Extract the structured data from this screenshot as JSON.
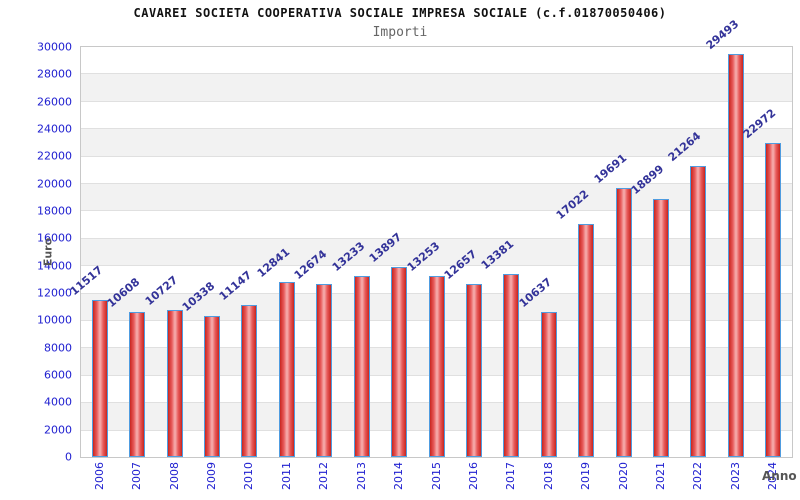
{
  "header": {
    "title": "CAVAREI SOCIETA COOPERATIVA SOCIALE IMPRESA SOCIALE (c.f.01870050406)",
    "subtitle": "Importi"
  },
  "axes": {
    "y_label": "Euro",
    "x_label": "Anno"
  },
  "chart_data": {
    "type": "bar",
    "title": "CAVAREI SOCIETA COOPERATIVA SOCIALE IMPRESA SOCIALE (c.f.01870050406)",
    "subtitle": "Importi",
    "xlabel": "Anno",
    "ylabel": "Euro",
    "categories": [
      "2006",
      "2007",
      "2008",
      "2009",
      "2010",
      "2011",
      "2012",
      "2013",
      "2014",
      "2015",
      "2016",
      "2017",
      "2018",
      "2019",
      "2020",
      "2021",
      "2022",
      "2023",
      "2024"
    ],
    "values": [
      11517,
      10608,
      10727,
      10338,
      11147,
      12841,
      12674,
      13233,
      13897,
      13253,
      12657,
      13381,
      10637,
      17022,
      19691,
      18899,
      21264,
      29493,
      22972
    ],
    "ylim": [
      0,
      30000
    ],
    "y_ticks": [
      0,
      2000,
      4000,
      6000,
      8000,
      10000,
      12000,
      14000,
      16000,
      18000,
      20000,
      22000,
      24000,
      26000,
      28000,
      30000
    ],
    "grid": "horizontal gridlines with alternating white/gray bands",
    "legend": "none",
    "value_labels": "above bars, rotated",
    "colors": {
      "bar_edge": "#c9251f",
      "bar_center": "#f5a6a6",
      "bar_border": "#4f9ce0",
      "tick_label": "#2020d0",
      "value_label": "#333399",
      "band_gray": "#f2f2f2",
      "gridline": "#e0e0e0",
      "plot_border": "#c8c8c8"
    }
  }
}
